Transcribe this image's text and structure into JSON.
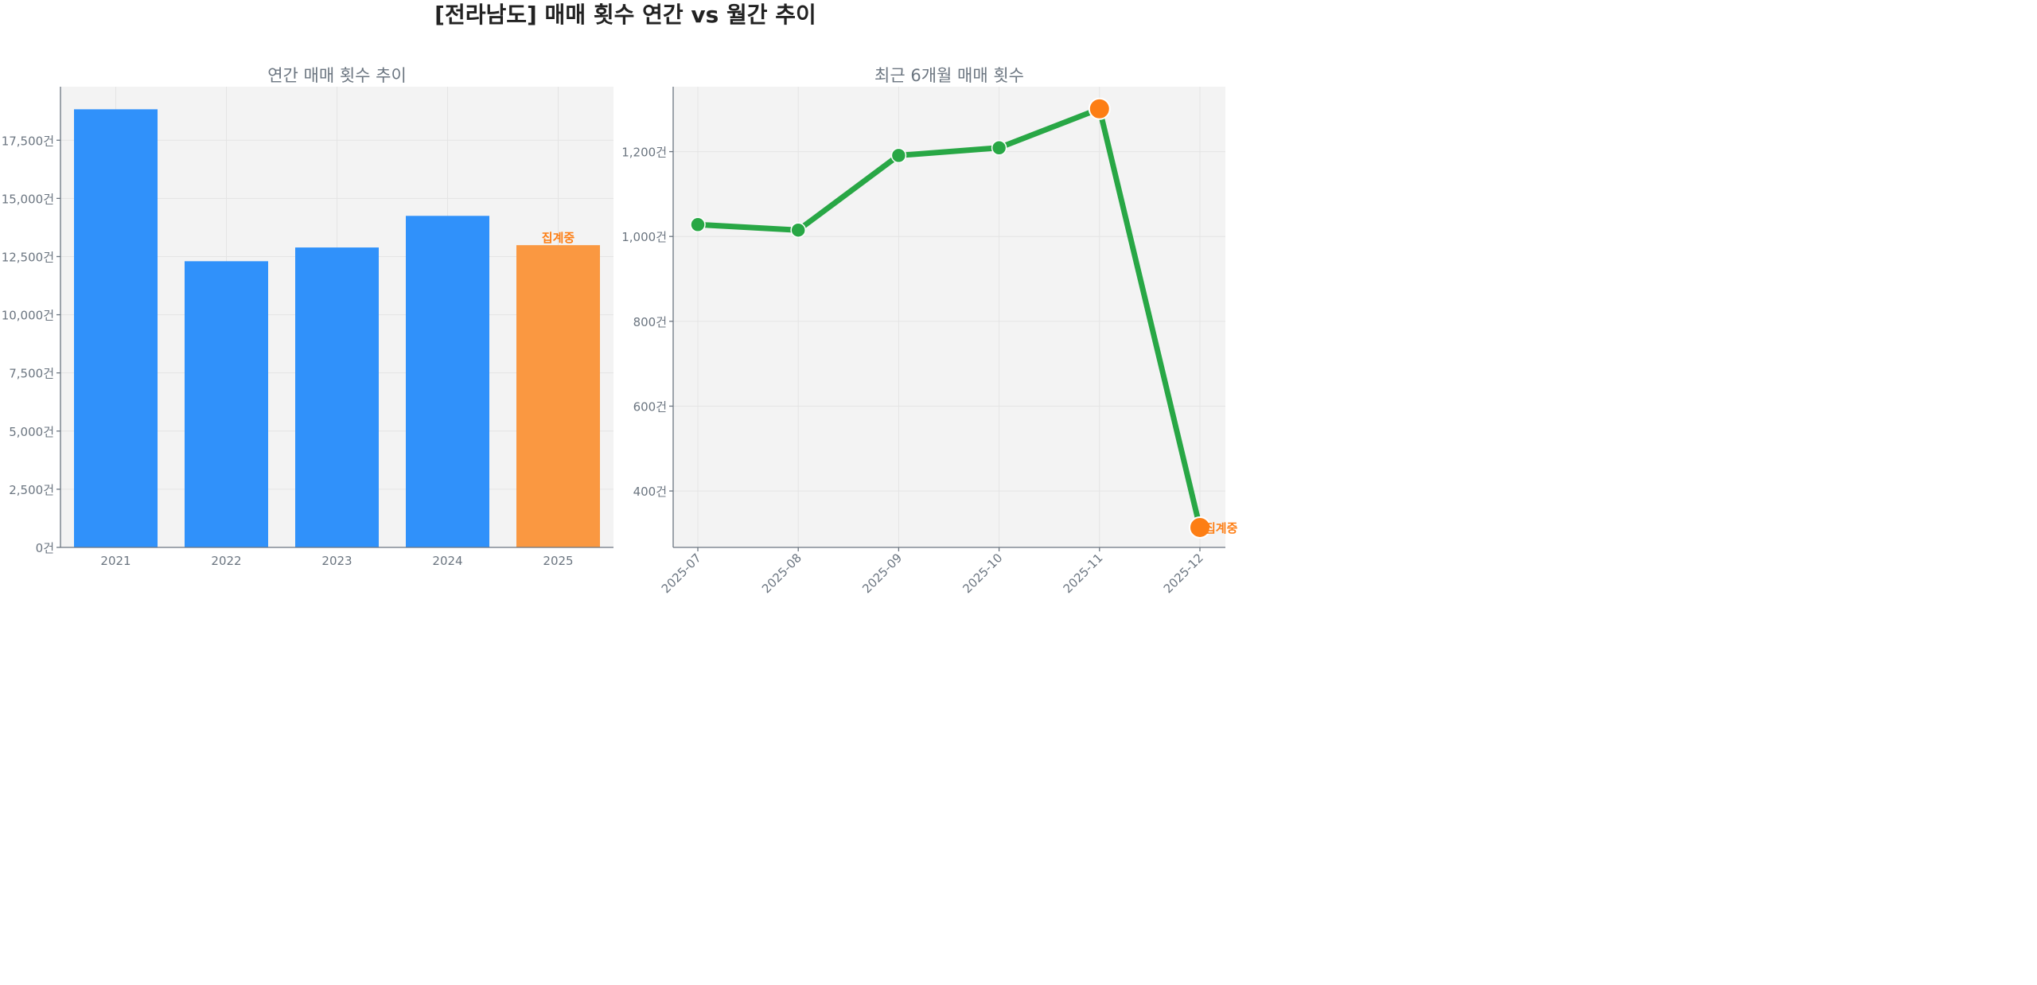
{
  "title": "[전라남도] 매매 횟수 연간 vs 월간 추이",
  "colors": {
    "bar": "#3091fa",
    "bar_partial": "#fa9841",
    "line": "#28a745",
    "highlight": "#fd7e14",
    "annotation": "#fd7e14"
  },
  "chart_data": [
    {
      "type": "bar",
      "title": "연간 매매 횟수 추이",
      "categories": [
        "2021",
        "2022",
        "2023",
        "2024",
        "2025"
      ],
      "values": [
        18830,
        12300,
        12890,
        14250,
        12990
      ],
      "ylim": [
        0,
        19800
      ],
      "yticks": [
        0,
        2500,
        5000,
        7500,
        10000,
        12500,
        15000,
        17500
      ],
      "ytick_labels": [
        "0건",
        "2,500건",
        "5,000건",
        "7,500건",
        "10,000건",
        "12,500건",
        "15,000건",
        "17,500건"
      ],
      "grid": true,
      "highlight_index": 4,
      "annotation": "집계중"
    },
    {
      "type": "line",
      "title": "최근 6개월 매매 횟수",
      "categories": [
        "2025-07",
        "2025-08",
        "2025-09",
        "2025-10",
        "2025-11",
        "2025-12"
      ],
      "values": [
        1028,
        1015,
        1191,
        1209,
        1301,
        314
      ],
      "ylim": [
        267,
        1353
      ],
      "yticks": [
        400,
        600,
        800,
        1000,
        1200
      ],
      "ytick_labels": [
        "400건",
        "600건",
        "800건",
        "1,000건",
        "1,200건"
      ],
      "grid": true,
      "highlight_indices": [
        4,
        5
      ],
      "annotation": "집계중"
    }
  ]
}
